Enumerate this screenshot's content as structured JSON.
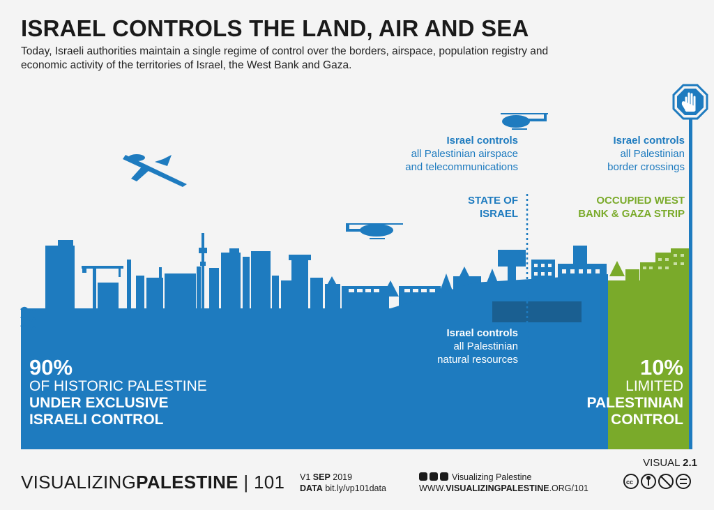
{
  "header": {
    "title": "ISRAEL CONTROLS THE LAND, AIR AND SEA",
    "subtitle": "Today, Israeli authorities maintain a single regime of control over the borders, airspace, population registry and economic activity of the territories of Israel, the West Bank and Gaza."
  },
  "labels": {
    "airspace": {
      "head": "Israel controls",
      "line1": "all Palestinian airspace",
      "line2": "and telecommunications"
    },
    "borders": {
      "head": "Israel controls",
      "line1": "all Palestinian",
      "line2": "border crossings"
    },
    "state": {
      "line1": "STATE OF",
      "line2": "ISRAEL"
    },
    "occupied": {
      "line1": "OCCUPIED WEST",
      "line2": "BANK & GAZA STRIP"
    },
    "resources": {
      "head": "Israel controls",
      "line1": "all Palestinian",
      "line2": "natural resources"
    }
  },
  "stats": {
    "left": {
      "pct": "90%",
      "line1": "OF HISTORIC PALESTINE",
      "line2": "UNDER EXCLUSIVE",
      "line3": "ISRAELI CONTROL"
    },
    "right": {
      "pct": "10%",
      "line1": "LIMITED",
      "line2": "PALESTINIAN",
      "line3": "CONTROL"
    }
  },
  "footer": {
    "brand_light": "VISUALIZING",
    "brand_bold": "PALESTINE",
    "brand_sep": "|",
    "brand_num": "101",
    "version_prefix": "V1",
    "version_month": "SEP",
    "version_year": "2019",
    "data_label": "DATA",
    "data_link": "bit.ly/vp101data",
    "social_name": "Visualizing Palestine",
    "url_prefix": "WWW.",
    "url_bold": "VISUALIZINGPALESTINE",
    "url_suffix": ".ORG/101",
    "visual_label": "VISUAL",
    "visual_num": "2.1",
    "license_icons": [
      "cc-icon",
      "by-icon",
      "nc-icon",
      "nd-icon"
    ]
  },
  "colors": {
    "blue": "#1e7bbf",
    "green": "#7aaa2a",
    "dark_blue": "#1a5f91",
    "background": "#f4f4f4"
  }
}
